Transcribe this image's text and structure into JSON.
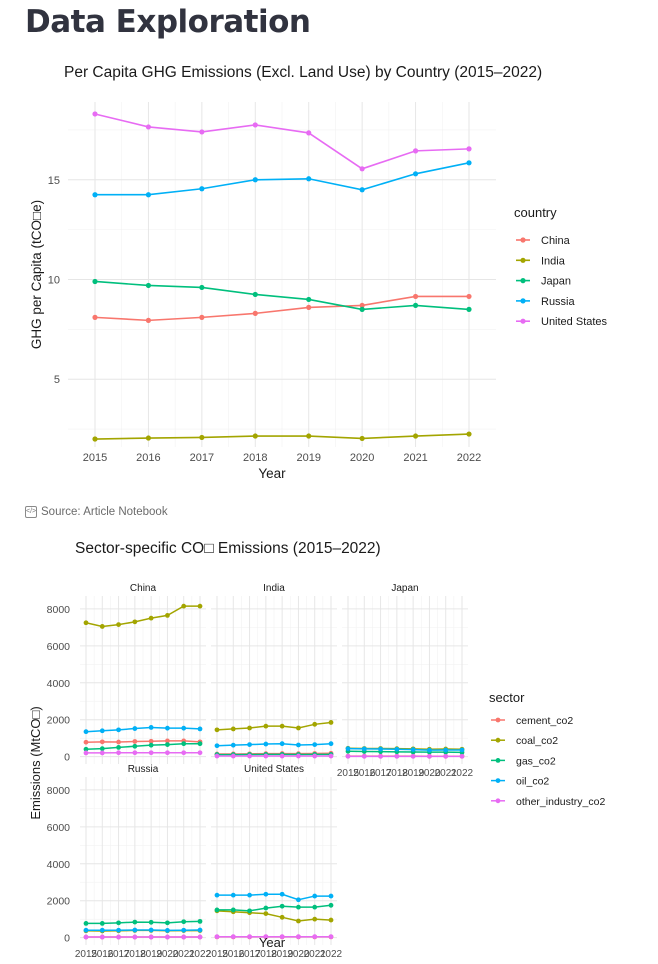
{
  "page": {
    "title": "Data Exploration",
    "source_label": "Source: Article Notebook",
    "source_icon": "notebook-icon"
  },
  "chart_data": [
    {
      "type": "line",
      "title": "Per Capita GHG Emissions (Excl. Land Use) by Country (2015–2022)",
      "xlabel": "Year",
      "ylabel": "GHG per Capita (tCO□e)",
      "x": [
        2015,
        2016,
        2017,
        2018,
        2019,
        2020,
        2021,
        2022
      ],
      "xticks": [
        "2015",
        "2016",
        "2017",
        "2018",
        "2019",
        "2020",
        "2021",
        "2022"
      ],
      "yticks": [
        5,
        10,
        15
      ],
      "ylim": [
        1.6,
        18.9
      ],
      "grid": true,
      "legend_title": "country",
      "legend_position": "right",
      "series": [
        {
          "name": "China",
          "color": "#F8766D",
          "values": [
            8.1,
            7.95,
            8.1,
            8.3,
            8.6,
            8.7,
            9.15,
            9.15
          ]
        },
        {
          "name": "India",
          "color": "#A3A500",
          "values": [
            2.0,
            2.05,
            2.08,
            2.15,
            2.15,
            2.03,
            2.15,
            2.25
          ]
        },
        {
          "name": "Japan",
          "color": "#00BF7D",
          "values": [
            9.9,
            9.7,
            9.6,
            9.25,
            9.0,
            8.5,
            8.7,
            8.5
          ]
        },
        {
          "name": "Russia",
          "color": "#00B0F6",
          "values": [
            14.25,
            14.25,
            14.55,
            15.0,
            15.05,
            14.5,
            15.3,
            15.85
          ]
        },
        {
          "name": "United States",
          "color": "#E76BF3",
          "values": [
            18.3,
            17.65,
            17.4,
            17.75,
            17.35,
            15.55,
            16.45,
            16.55
          ]
        }
      ]
    },
    {
      "type": "line",
      "title": "Sector-specific CO□ Emissions (2015–2022)",
      "xlabel": "Year",
      "ylabel": "Emissions (MtCO□)",
      "x": [
        2015,
        2016,
        2017,
        2018,
        2019,
        2020,
        2021,
        2022
      ],
      "xticks": [
        "2015",
        "2016",
        "2017",
        "2018",
        "2019",
        "2020",
        "2021",
        "2022"
      ],
      "yticks": [
        "0",
        "2000",
        "4000",
        "6000",
        "8000"
      ],
      "ylim": [
        -400,
        8700
      ],
      "grid": true,
      "legend_title": "sector",
      "legend_position": "right",
      "sectors": [
        {
          "name": "cement_co2",
          "color": "#F8766D"
        },
        {
          "name": "coal_co2",
          "color": "#A3A500"
        },
        {
          "name": "gas_co2",
          "color": "#00BF7D"
        },
        {
          "name": "oil_co2",
          "color": "#00B0F6"
        },
        {
          "name": "other_industry_co2",
          "color": "#E76BF3"
        }
      ],
      "facets": [
        {
          "name": "China",
          "series": {
            "cement_co2": [
              780,
              800,
              790,
              820,
              830,
              850,
              850,
              800
            ],
            "coal_co2": [
              7250,
              7050,
              7150,
              7300,
              7500,
              7650,
              8150,
              8150
            ],
            "gas_co2": [
              400,
              430,
              500,
              560,
              620,
              650,
              700,
              700
            ],
            "oil_co2": [
              1350,
              1400,
              1450,
              1520,
              1580,
              1540,
              1540,
              1500
            ],
            "other_industry_co2": [
              200,
              200,
              210,
              210,
              210,
              210,
              210,
              210
            ]
          }
        },
        {
          "name": "India",
          "series": {
            "cement_co2": [
              140,
              145,
              150,
              160,
              165,
              160,
              170,
              180
            ],
            "coal_co2": [
              1450,
              1500,
              1550,
              1650,
              1650,
              1550,
              1750,
              1850
            ],
            "gas_co2": [
              110,
              110,
              115,
              120,
              120,
              115,
              120,
              120
            ],
            "oil_co2": [
              590,
              620,
              650,
              680,
              700,
              630,
              650,
              700
            ],
            "other_industry_co2": [
              30,
              30,
              30,
              30,
              30,
              30,
              30,
              30
            ]
          }
        },
        {
          "name": "Japan",
          "series": {
            "cement_co2": [
              25,
              25,
              25,
              25,
              25,
              20,
              20,
              20
            ],
            "coal_co2": [
              450,
              440,
              440,
              430,
              420,
              400,
              410,
              400
            ],
            "gas_co2": [
              290,
              280,
              270,
              260,
              250,
              240,
              240,
              230
            ],
            "oil_co2": [
              430,
              420,
              410,
              400,
              380,
              350,
              355,
              360
            ],
            "other_industry_co2": [
              15,
              15,
              15,
              15,
              15,
              15,
              15,
              15
            ]
          }
        },
        {
          "name": "Russia",
          "series": {
            "cement_co2": [
              30,
              30,
              30,
              30,
              30,
              30,
              30,
              30
            ],
            "coal_co2": [
              370,
              360,
              370,
              390,
              390,
              370,
              380,
              380
            ],
            "gas_co2": [
              770,
              770,
              800,
              840,
              830,
              800,
              860,
              880
            ],
            "oil_co2": [
              400,
              400,
              400,
              410,
              410,
              390,
              400,
              410
            ],
            "other_industry_co2": [
              30,
              30,
              30,
              30,
              30,
              30,
              30,
              30
            ]
          }
        },
        {
          "name": "United States",
          "series": {
            "cement_co2": [
              40,
              40,
              40,
              40,
              40,
              40,
              40,
              40
            ],
            "coal_co2": [
              1450,
              1400,
              1350,
              1300,
              1100,
              900,
              1000,
              950
            ],
            "gas_co2": [
              1500,
              1500,
              1450,
              1600,
              1700,
              1650,
              1650,
              1750
            ],
            "oil_co2": [
              2300,
              2300,
              2300,
              2350,
              2350,
              2050,
              2250,
              2250
            ],
            "other_industry_co2": [
              50,
              50,
              50,
              50,
              50,
              50,
              50,
              50
            ]
          }
        }
      ]
    }
  ]
}
